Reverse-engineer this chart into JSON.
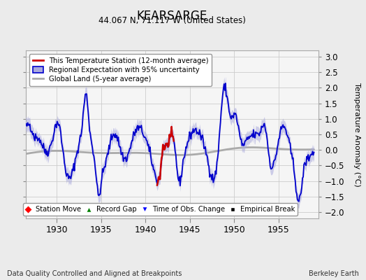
{
  "title": "KEARSARGE",
  "subtitle": "44.067 N, 71.117 W (United States)",
  "ylabel": "Temperature Anomaly (°C)",
  "xlabel_note": "Data Quality Controlled and Aligned at Breakpoints",
  "credit": "Berkeley Earth",
  "xlim": [
    1926.5,
    1959.5
  ],
  "ylim": [
    -2.2,
    3.2
  ],
  "yticks": [
    -2,
    -1.5,
    -1,
    -0.5,
    0,
    0.5,
    1,
    1.5,
    2,
    2.5,
    3
  ],
  "xticks": [
    1930,
    1935,
    1940,
    1945,
    1950,
    1955
  ],
  "bg_color": "#ebebeb",
  "plot_bg_color": "#f5f5f5",
  "regional_color": "#0000cc",
  "regional_fill_color": "#aaaadd",
  "station_color": "#cc0000",
  "global_color": "#aaaaaa",
  "seed": 42,
  "figsize": [
    5.24,
    4.0
  ],
  "dpi": 100
}
